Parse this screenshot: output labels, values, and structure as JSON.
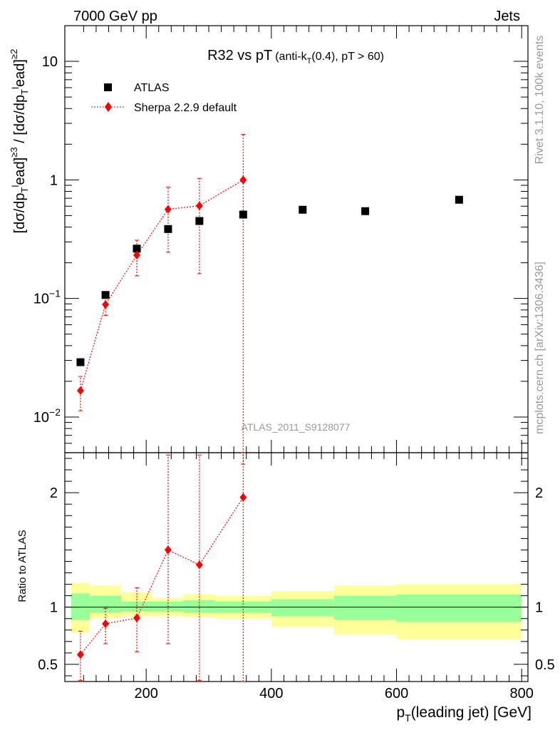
{
  "header": {
    "left": "7000 GeV pp",
    "right": "Jets"
  },
  "side_labels": {
    "rivet": "Rivet 3.1.10,  100k events",
    "mcplots": "mcplots.cern.ch [arXiv:1306.3436]"
  },
  "watermark": "ATLAS_2011_S9128077",
  "chart_data": [
    {
      "type": "scatter",
      "panel": "main",
      "title_main": "R32 vs pT",
      "title_sub": "(anti-k",
      "title_sub_sub": "T",
      "title_sub_end": "(0.4), pT > 60)",
      "ylabel": "[dσ/dp_T^lead]^{≥3} / [dσ/dp_T^lead]^{≥2}",
      "yscale": "log",
      "ylim": [
        0.005,
        20
      ],
      "xlim": [
        70,
        810
      ],
      "yticks": [
        0.01,
        0.1,
        1,
        10
      ],
      "ytick_labels": [
        {
          "base": "10",
          "exp": "−2"
        },
        {
          "base": "10",
          "exp": "−1"
        },
        {
          "base": "1",
          "exp": ""
        },
        {
          "base": "10",
          "exp": ""
        }
      ],
      "legend_placement": "top-left",
      "series": [
        {
          "name": "ATLAS",
          "color": "#000000",
          "marker": "square",
          "x": [
            95,
            135,
            185,
            235,
            285,
            355,
            450,
            550,
            700
          ],
          "y": [
            0.029,
            0.107,
            0.263,
            0.385,
            0.45,
            0.51,
            0.56,
            0.545,
            0.68
          ]
        },
        {
          "name": "Sherpa 2.2.9 default",
          "color": "#ff0000",
          "marker": "diamond",
          "x": [
            95,
            135,
            185,
            235,
            285,
            355
          ],
          "y": [
            0.0167,
            0.089,
            0.232,
            0.565,
            0.605,
            1.0
          ],
          "yerr_low": [
            0.0113,
            0.072,
            0.155,
            0.245,
            0.162,
            0.004
          ],
          "yerr_high": [
            0.022,
            0.107,
            0.31,
            0.87,
            1.03,
            2.42
          ]
        }
      ]
    },
    {
      "type": "scatter",
      "panel": "ratio",
      "ylabel": "Ratio to ATLAS",
      "xlabel_main": "p",
      "xlabel_sub": "T",
      "xlabel_end": "(leading jet) [GeV]",
      "ylim": [
        0.35,
        2.35
      ],
      "xlim": [
        70,
        810
      ],
      "yticks": [
        0.5,
        1,
        2
      ],
      "ytick_labels": [
        "0.5",
        "1",
        "2"
      ],
      "xticks": [
        200,
        400,
        600,
        800
      ],
      "xtick_labels": [
        "200",
        "400",
        "600",
        "800"
      ],
      "bands": [
        {
          "x0": 80,
          "x1": 110,
          "inner": [
            0.89,
            1.12
          ],
          "outer": [
            0.78,
            1.21
          ]
        },
        {
          "x0": 110,
          "x1": 160,
          "inner": [
            0.95,
            1.1
          ],
          "outer": [
            0.9,
            1.19
          ]
        },
        {
          "x0": 160,
          "x1": 210,
          "inner": [
            0.96,
            1.05
          ],
          "outer": [
            0.92,
            1.13
          ]
        },
        {
          "x0": 210,
          "x1": 260,
          "inner": [
            0.96,
            1.05
          ],
          "outer": [
            0.92,
            1.08
          ]
        },
        {
          "x0": 260,
          "x1": 310,
          "inner": [
            0.95,
            1.06
          ],
          "outer": [
            0.91,
            1.11
          ]
        },
        {
          "x0": 310,
          "x1": 400,
          "inner": [
            0.95,
            1.05
          ],
          "outer": [
            0.9,
            1.1
          ]
        },
        {
          "x0": 400,
          "x1": 500,
          "inner": [
            0.92,
            1.07
          ],
          "outer": [
            0.83,
            1.14
          ]
        },
        {
          "x0": 500,
          "x1": 600,
          "inner": [
            0.89,
            1.1
          ],
          "outer": [
            0.76,
            1.19
          ]
        },
        {
          "x0": 600,
          "x1": 800,
          "inner": [
            0.87,
            1.11
          ],
          "outer": [
            0.72,
            1.2
          ]
        }
      ],
      "band_colors": {
        "inner": "#99ff99",
        "outer": "#ffff99"
      },
      "series": [
        {
          "name": "Sherpa 2.2.9 default",
          "color": "#ff0000",
          "x": [
            95,
            135,
            185,
            235,
            285,
            355
          ],
          "y": [
            0.585,
            0.855,
            0.905,
            1.5,
            1.37,
            1.96
          ],
          "yerr_low": [
            0.36,
            0.68,
            0.61,
            0.68,
            0.36,
            0.35
          ],
          "yerr_high": [
            0.79,
            0.99,
            1.17,
            2.33,
            2.33,
            2.35
          ]
        }
      ]
    }
  ]
}
